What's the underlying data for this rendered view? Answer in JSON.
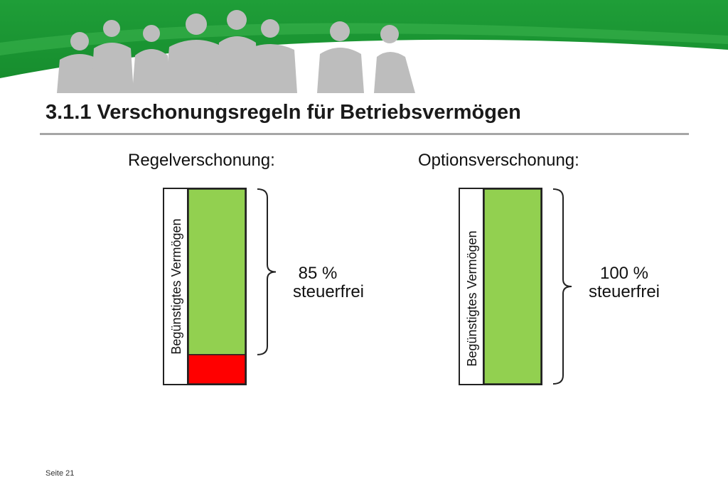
{
  "header": {
    "title": "3.1.1 Verschonungsregeln für Betriebsvermögen",
    "brand_color": "#1e9a36"
  },
  "panels": [
    {
      "heading": "Regelverschonung:",
      "axis_label": "Begünstigtes Vermögen",
      "tax_free_fraction": 0.85,
      "percent_text": "85 %",
      "status_text": "steuerfrei",
      "tax_free_color": "#92d050",
      "taxed_color": "#ff0000"
    },
    {
      "heading": "Optionsverschonung:",
      "axis_label": "Begünstigtes Vermögen",
      "tax_free_fraction": 1.0,
      "percent_text": "100 %",
      "status_text": "steuerfrei",
      "tax_free_color": "#92d050",
      "taxed_color": "#ff0000"
    }
  ],
  "footer": {
    "page_label": "Seite 21"
  }
}
